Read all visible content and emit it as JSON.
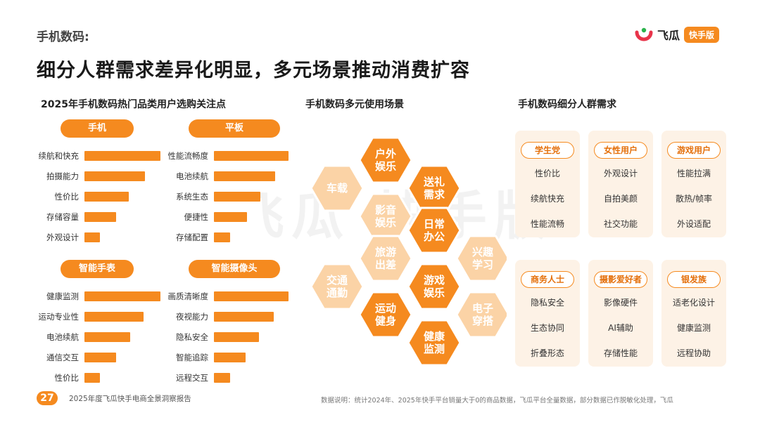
{
  "header": {
    "section_label": "手机数码:",
    "title": "细分人群需求差异化明显，多元场景推动消费扩容"
  },
  "logo": {
    "name": "飞瓜",
    "badge": "快手版"
  },
  "watermark": "飞瓜 快手版",
  "left_panel": {
    "title": "2025年手机数码热门品类用户选购关注点",
    "chart_data": [
      {
        "type": "bar",
        "title": "手机",
        "categories": [
          "续航和快充",
          "拍摄能力",
          "性价比",
          "存储容量",
          "外观设计"
        ],
        "values": [
          1.0,
          0.8,
          0.58,
          0.42,
          0.2
        ]
      },
      {
        "type": "bar",
        "title": "平板",
        "categories": [
          "性能流畅度",
          "电池续航",
          "系统生态",
          "便捷性",
          "存储配置"
        ],
        "values": [
          1.0,
          0.82,
          0.62,
          0.44,
          0.22
        ]
      },
      {
        "type": "bar",
        "title": "智能手表",
        "categories": [
          "健康监测",
          "运动专业性",
          "电池续航",
          "通信交互",
          "性价比"
        ],
        "values": [
          1.0,
          0.78,
          0.6,
          0.42,
          0.2
        ]
      },
      {
        "type": "bar",
        "title": "智能摄像头",
        "categories": [
          "画质清晰度",
          "夜视能力",
          "隐私安全",
          "智能追踪",
          "远程交互"
        ],
        "values": [
          1.0,
          0.8,
          0.6,
          0.42,
          0.22
        ]
      }
    ]
  },
  "middle_panel": {
    "title": "手机数码多元使用场景",
    "hexes": [
      "户外\n娱乐",
      "车载",
      "送礼\n需求",
      "影音\n娱乐",
      "日常\n办公",
      "旅游\n出差",
      "兴趣\n学习",
      "交通\n通勤",
      "游戏\n娱乐",
      "运动\n健身",
      "电子\n穿搭",
      "健康\n监测"
    ]
  },
  "right_panel": {
    "title": "手机数码细分人群需求",
    "groups": [
      {
        "tag": "学生党",
        "items": [
          "性价比",
          "续航快充",
          "性能流畅"
        ]
      },
      {
        "tag": "女性用户",
        "items": [
          "外观设计",
          "自拍美颜",
          "社交功能"
        ]
      },
      {
        "tag": "游戏用户",
        "items": [
          "性能拉满",
          "散热/帧率",
          "外设适配"
        ]
      },
      {
        "tag": "商务人士",
        "items": [
          "隐私安全",
          "生态协同",
          "折叠形态"
        ]
      },
      {
        "tag": "摄影爱好者",
        "items": [
          "影像硬件",
          "AI辅助",
          "存储性能"
        ]
      },
      {
        "tag": "银发族",
        "items": [
          "适老化设计",
          "健康监测",
          "远程协助"
        ]
      }
    ]
  },
  "footer": {
    "page_number": "27",
    "report_name": "2025年度飞瓜快手电商全景洞察报告",
    "source": "数据说明：统计2024年、2025年快手平台销量大于0的商品数据，飞瓜平台全量数据，部分数据已作脱敏化处理，飞瓜"
  },
  "colors": {
    "accent": "#f58a1f",
    "hex_dark": "#f58a1f",
    "hex_light": "#fbd3a6",
    "card_bg": "#fdf2e6"
  }
}
